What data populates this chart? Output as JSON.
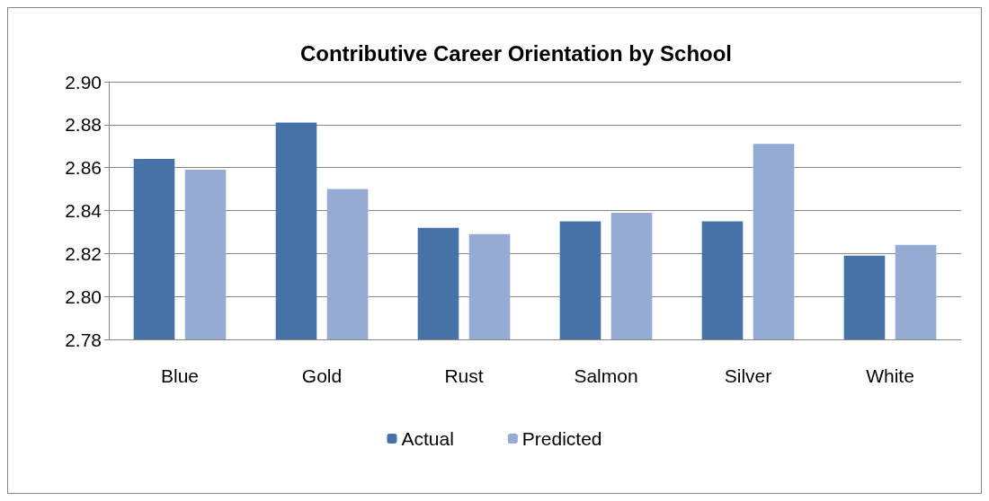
{
  "chart_data": {
    "type": "bar",
    "title": "Contributive Career Orientation by School",
    "categories": [
      "Blue",
      "Gold",
      "Rust",
      "Salmon",
      "Silver",
      "White"
    ],
    "series": [
      {
        "name": "Actual",
        "color": "#4672a8",
        "values": [
          2.864,
          2.881,
          2.832,
          2.835,
          2.835,
          2.819
        ]
      },
      {
        "name": "Predicted",
        "color": "#95abd3",
        "values": [
          2.859,
          2.85,
          2.829,
          2.839,
          2.871,
          2.824
        ]
      }
    ],
    "ylim": [
      2.78,
      2.9
    ],
    "yticks": [
      2.78,
      {
        "value": 2.8,
        "label": "2.80"
      },
      2.82,
      2.84,
      2.86,
      2.88,
      {
        "value": 2.9,
        "label": "2.90"
      }
    ],
    "grid": "y",
    "legend": "bottom"
  }
}
